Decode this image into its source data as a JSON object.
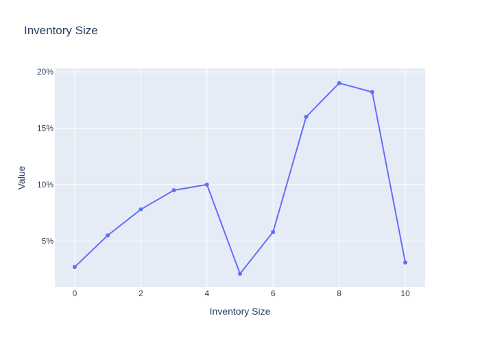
{
  "chart_data": {
    "type": "line",
    "title": "Inventory Size",
    "xlabel": "Inventory Size",
    "ylabel": "Value",
    "x": [
      0,
      1,
      2,
      3,
      4,
      5,
      6,
      7,
      8,
      9,
      10
    ],
    "series": [
      {
        "values": [
          2.7,
          5.5,
          7.8,
          9.5,
          10.0,
          2.1,
          5.8,
          16.0,
          19.0,
          18.2,
          3.1
        ]
      }
    ],
    "xlim": [
      -0.6,
      10.6
    ],
    "ylim": [
      0.9,
      20.3
    ],
    "xticks": [
      0,
      2,
      4,
      6,
      8,
      10
    ],
    "yticks": [
      5,
      10,
      15,
      20
    ],
    "ytick_suffix": "%",
    "grid": true,
    "legend": "none",
    "colors": {
      "series": "#636efa",
      "plot_background": "#e5ecf6",
      "grid": "#ffffff",
      "text": "#2a3f5f"
    }
  }
}
